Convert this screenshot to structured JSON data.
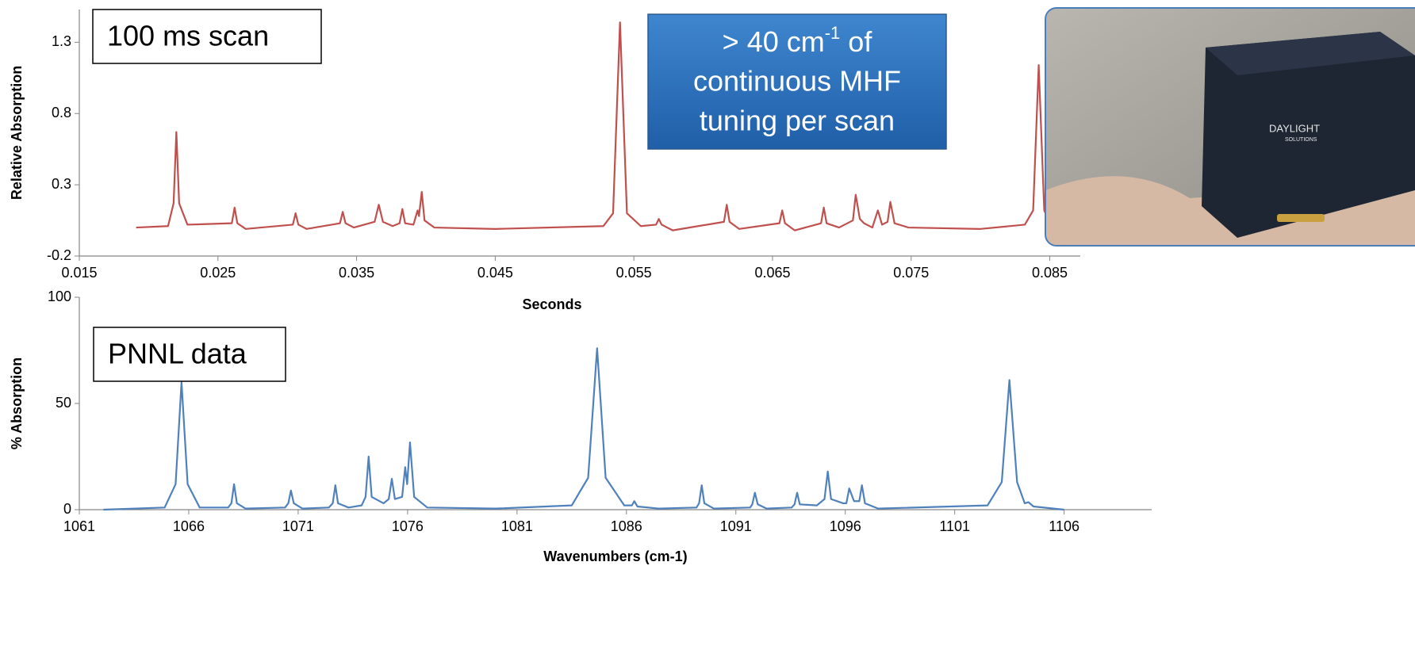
{
  "chart_data": [
    {
      "type": "line",
      "color": "#c0504d",
      "y_label": "Relative Absorption",
      "x_label": "Seconds",
      "annotation": "100 ms scan",
      "xlim": [
        0.015,
        0.0872
      ],
      "xticks": [
        0.015,
        0.025,
        0.035,
        0.045,
        0.055,
        0.065,
        0.075,
        0.085
      ],
      "ylim": [
        -0.2,
        1.53
      ],
      "yticks": [
        -0.2,
        0.3,
        0.8,
        1.3
      ],
      "x": [
        0.0191,
        0.0214,
        0.0218,
        0.022,
        0.0222,
        0.0228,
        0.026,
        0.0262,
        0.0264,
        0.027,
        0.0304,
        0.0306,
        0.0308,
        0.0314,
        0.0338,
        0.034,
        0.0342,
        0.0348,
        0.0363,
        0.0366,
        0.0369,
        0.0376,
        0.0381,
        0.0383,
        0.0385,
        0.0391,
        0.0394,
        0.0395,
        0.0397,
        0.0399,
        0.0406,
        0.045,
        0.0528,
        0.0535,
        0.054,
        0.0545,
        0.0555,
        0.0566,
        0.0568,
        0.057,
        0.0578,
        0.0615,
        0.0617,
        0.0619,
        0.0626,
        0.0655,
        0.0657,
        0.0659,
        0.0666,
        0.0685,
        0.0687,
        0.0689,
        0.0698,
        0.0708,
        0.071,
        0.0713,
        0.0716,
        0.0722,
        0.0726,
        0.0729,
        0.0733,
        0.0735,
        0.0738,
        0.0748,
        0.08,
        0.0832,
        0.0838,
        0.0842,
        0.0846,
        0.0851,
        0.0853,
        0.0856,
        0.0871
      ],
      "values": [
        0,
        0.01,
        0.17,
        0.67,
        0.17,
        0.02,
        0.03,
        0.14,
        0.03,
        -0.01,
        0.02,
        0.1,
        0.02,
        -0.01,
        0.03,
        0.11,
        0.03,
        0,
        0.04,
        0.16,
        0.04,
        0.01,
        0.03,
        0.13,
        0.03,
        0.02,
        0.12,
        0.08,
        0.25,
        0.05,
        0,
        -0.01,
        0.01,
        0.1,
        1.44,
        0.1,
        0.01,
        0.02,
        0.06,
        0.02,
        -0.02,
        0.04,
        0.16,
        0.04,
        -0.01,
        0.03,
        0.12,
        0.03,
        -0.02,
        0.03,
        0.14,
        0.03,
        0,
        0.05,
        0.23,
        0.06,
        0.03,
        0,
        0.12,
        0.02,
        0.04,
        0.18,
        0.03,
        0,
        -0.01,
        0.02,
        0.12,
        1.14,
        0.12,
        0.01,
        0.03,
        0,
        0
      ]
    },
    {
      "type": "line",
      "color": "#4f81bd",
      "y_label": "% Absorption",
      "x_label": "Wavenumbers (cm-1)",
      "annotation": "PNNL data",
      "xlim": [
        1061,
        1110
      ],
      "xticks": [
        1061,
        1066,
        1071,
        1076,
        1081,
        1086,
        1091,
        1096,
        1101,
        1106
      ],
      "ylim": [
        0,
        100
      ],
      "yticks": [
        0,
        50,
        100
      ],
      "x": [
        1062.1,
        1064.9,
        1065.4,
        1065.67,
        1065.95,
        1066.5,
        1067.8,
        1067.95,
        1068.07,
        1068.2,
        1068.6,
        1070.4,
        1070.55,
        1070.67,
        1070.8,
        1071.2,
        1072.4,
        1072.58,
        1072.7,
        1072.82,
        1073.3,
        1073.9,
        1074.08,
        1074.22,
        1074.36,
        1074.9,
        1075.14,
        1075.28,
        1075.42,
        1075.75,
        1075.89,
        1075.98,
        1076.11,
        1076.3,
        1076.9,
        1080,
        1083.5,
        1084.25,
        1084.66,
        1085.05,
        1085.9,
        1086.25,
        1086.36,
        1086.5,
        1087.5,
        1089.2,
        1089.32,
        1089.44,
        1089.56,
        1090,
        1091.65,
        1091.75,
        1091.87,
        1092,
        1092.4,
        1093.55,
        1093.68,
        1093.8,
        1093.92,
        1094.7,
        1095.05,
        1095.2,
        1095.35,
        1095.9,
        1096.05,
        1096.18,
        1096.4,
        1096.64,
        1096.76,
        1096.9,
        1097.5,
        1102.5,
        1103.15,
        1103.5,
        1103.85,
        1104.2,
        1104.37,
        1104.6,
        1106
      ],
      "values": [
        0,
        1,
        12,
        60,
        12,
        1,
        1,
        3,
        12,
        3,
        0.5,
        1,
        3,
        9,
        3,
        0.5,
        1,
        3,
        11.5,
        3,
        1,
        2,
        6,
        25,
        6,
        3,
        5,
        14.5,
        5,
        6,
        20,
        12,
        31.7,
        6,
        1,
        0.5,
        2,
        15,
        76,
        15,
        2,
        2,
        4,
        1.5,
        0.5,
        1,
        3,
        11.5,
        3,
        0.5,
        1,
        2.5,
        8,
        2.5,
        0.5,
        1,
        2.5,
        8,
        2.5,
        2,
        5,
        18,
        5,
        3,
        3,
        10,
        4,
        4,
        11.5,
        3,
        0.5,
        2,
        13,
        61,
        13,
        3,
        3.5,
        1.5,
        0
      ]
    }
  ],
  "callout": {
    "line1_start": "> 40 cm",
    "line1_sup": "-1",
    "line1_end": " of",
    "line2": "continuous MHF",
    "line3": "tuning per scan"
  },
  "photo": {
    "brand": "DAYLIGHT",
    "sub": "SOLUTIONS"
  }
}
